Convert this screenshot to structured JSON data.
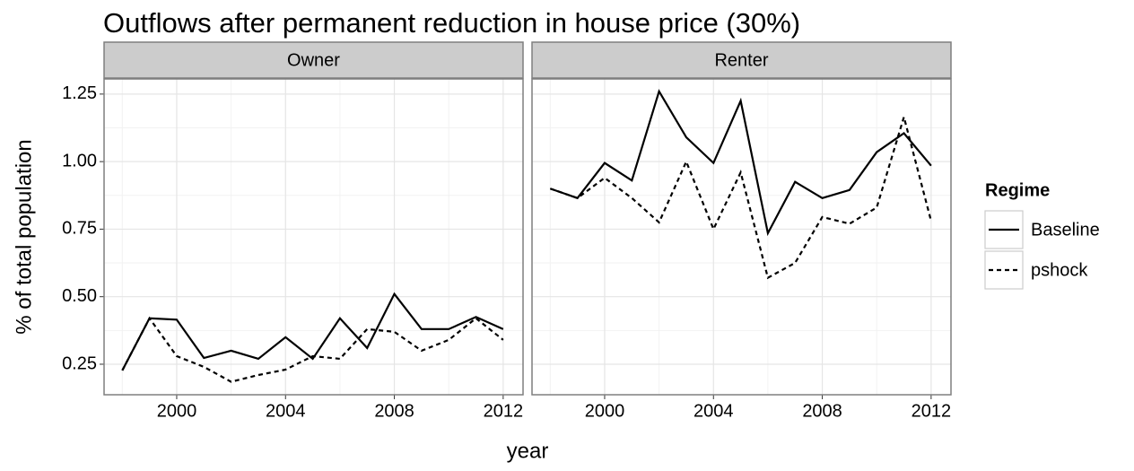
{
  "chart_data": {
    "type": "line",
    "title": "Outflows after permanent reduction in house price (30%)",
    "x_label": "year",
    "y_label": "% of total population",
    "legend_title": "Regime",
    "series": [
      {
        "name": "Baseline",
        "color": "#000000",
        "dash": "solid"
      },
      {
        "name": "pshock",
        "color": "#000000",
        "dash": "dotted"
      }
    ],
    "xlim": [
      1997.33,
      2012.73
    ],
    "ylim": [
      0.137,
      1.306
    ],
    "xticks": [
      2000,
      2004,
      2008,
      2012
    ],
    "yticks": [
      0.25,
      {
        "value": 0.5,
        "label": "0.50"
      },
      0.75,
      {
        "value": 1,
        "label": "1.00"
      },
      1.25
    ],
    "grid": true,
    "panels": [
      {
        "title": "Owner",
        "x": [
          1998,
          1999,
          2000,
          2001,
          2002,
          2003,
          2004,
          2005,
          2006,
          2007,
          2008,
          2009,
          2010,
          2011,
          2012
        ],
        "series": [
          {
            "values": [
              0.227,
              0.42,
              0.415,
              0.273,
              0.3,
              0.27,
              0.35,
              0.27,
              0.42,
              0.31,
              0.51,
              0.38,
              0.38,
              0.425,
              0.38
            ]
          },
          {
            "values": [
              0.227,
              0.42,
              0.28,
              0.24,
              0.185,
              0.21,
              0.23,
              0.28,
              0.27,
              0.38,
              0.37,
              0.3,
              0.34,
              0.42,
              0.34
            ]
          }
        ]
      },
      {
        "title": "Renter",
        "x": [
          1998,
          1999,
          2000,
          2001,
          2002,
          2003,
          2004,
          2005,
          2006,
          2007,
          2008,
          2009,
          2010,
          2011,
          2012
        ],
        "series": [
          {
            "values": [
              0.9,
              0.865,
              0.995,
              0.93,
              1.26,
              1.09,
              0.995,
              1.225,
              0.735,
              0.925,
              0.865,
              0.895,
              1.035,
              1.105,
              0.985
            ]
          },
          {
            "values": [
              0.9,
              0.865,
              0.94,
              0.865,
              0.775,
              1.0,
              0.75,
              0.96,
              0.57,
              0.625,
              0.795,
              0.77,
              0.83,
              1.165,
              0.78
            ]
          }
        ]
      }
    ]
  }
}
